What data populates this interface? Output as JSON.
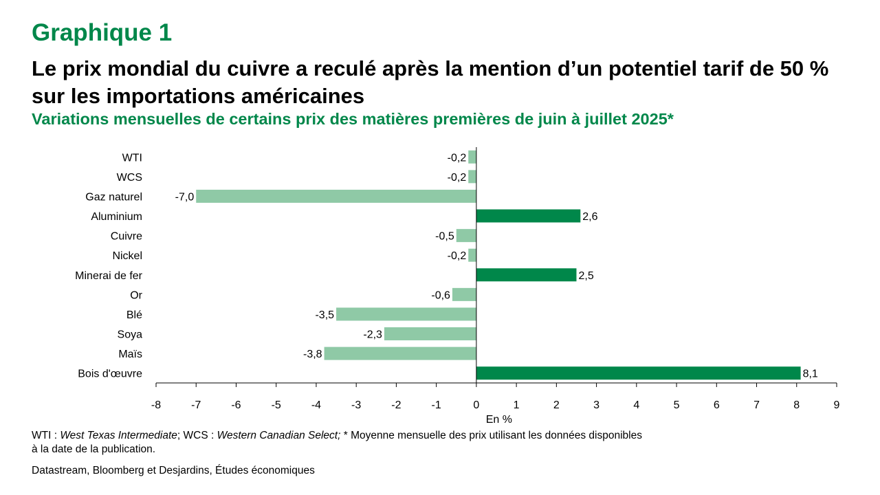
{
  "header": {
    "label": "Graphique 1",
    "title": "Le prix mondial du cuivre a reculé après la mention d’un potentiel tarif de 50 % sur les importations américaines",
    "subtitle": "Variations mensuelles de certains prix des matières premières de juin à juillet 2025*"
  },
  "chart_data": {
    "type": "bar",
    "orientation": "horizontal",
    "categories": [
      "WTI",
      "WCS",
      "Gaz naturel",
      "Aluminium",
      "Cuivre",
      "Nickel",
      "Minerai de fer",
      "Or",
      "Blé",
      "Soya",
      "Maïs",
      "Bois d'œuvre"
    ],
    "values": [
      -0.2,
      -0.2,
      -7.0,
      2.6,
      -0.5,
      -0.2,
      2.5,
      -0.6,
      -3.5,
      -2.3,
      -3.8,
      8.1
    ],
    "value_labels": [
      "-0,2",
      "-0,2",
      "-7,0",
      "2,6",
      "-0,5",
      "-0,2",
      "2,5",
      "-0,6",
      "-3,5",
      "-2,3",
      "-3,8",
      "8,1"
    ],
    "xlabel": "En %",
    "xlim": [
      -8,
      9
    ],
    "xticks": [
      -8,
      -7,
      -6,
      -5,
      -4,
      -3,
      -2,
      -1,
      0,
      1,
      2,
      3,
      4,
      5,
      6,
      7,
      8,
      9
    ],
    "colors": {
      "positive": "#00874a",
      "negative": "#8fc9a6"
    },
    "grid": false,
    "legend": "none"
  },
  "footer": {
    "note_parts": [
      "WTI : ",
      "West Texas Intermediate",
      "; WCS : ",
      "Western Canadian Select;",
      " * Moyenne mensuelle des prix utilisant les données disponibles à la date de la publication."
    ],
    "source": "Datastream, Bloomberg et Desjardins, Études économiques"
  }
}
